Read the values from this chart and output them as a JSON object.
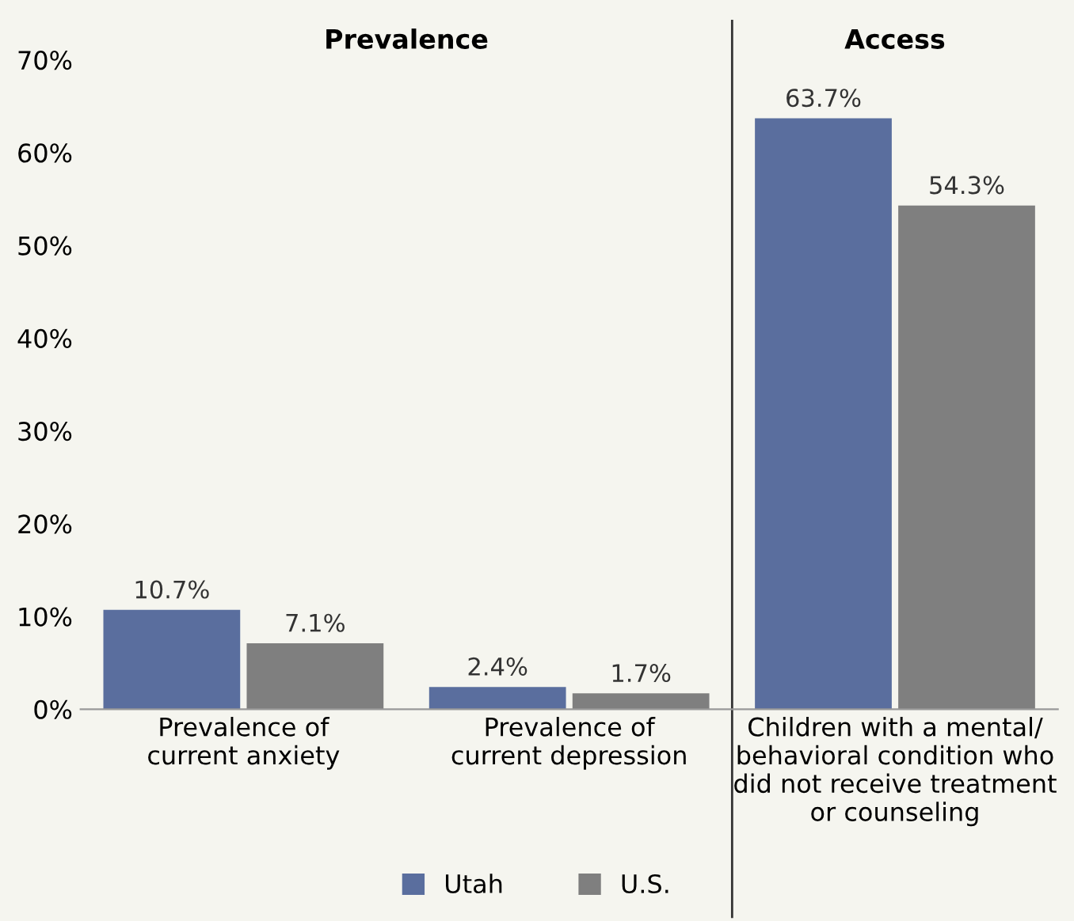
{
  "chart_data": {
    "type": "bar",
    "annotations": [
      "Prevalence",
      "Access"
    ],
    "categories": [
      "Prevalence of\ncurrent anxiety",
      "Prevalence of\ncurrent depression",
      "Children with a mental/\nbehavioral condition who\ndid not receive treatment\nor counseling"
    ],
    "series": [
      {
        "name": "Utah",
        "color": "#5a6e9e",
        "values": [
          10.7,
          2.4,
          63.7
        ],
        "value_labels": [
          "10.7%",
          "2.4%",
          "63.7%"
        ]
      },
      {
        "name": "U.S.",
        "color": "#7f7f7f",
        "values": [
          7.1,
          1.7,
          54.3
        ],
        "value_labels": [
          "7.1%",
          "1.7%",
          "54.3%"
        ]
      }
    ],
    "ylim": [
      0,
      70
    ],
    "yticks": [
      {
        "value": 0,
        "label": "0%"
      },
      {
        "value": 10,
        "label": "10%"
      },
      {
        "value": 20,
        "label": "20%"
      },
      {
        "value": 30,
        "label": "30%"
      },
      {
        "value": 40,
        "label": "40%"
      },
      {
        "value": 50,
        "label": "50%"
      },
      {
        "value": 60,
        "label": "60%"
      },
      {
        "value": 70,
        "label": "70%"
      }
    ],
    "grid": false,
    "legend": "bottom"
  }
}
